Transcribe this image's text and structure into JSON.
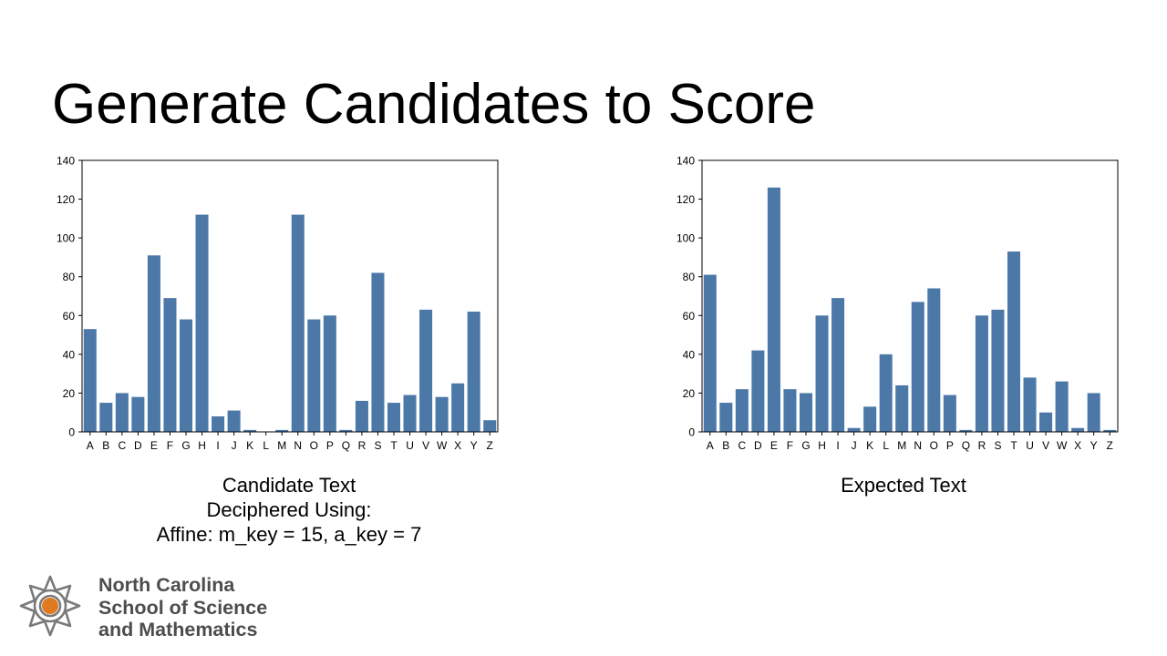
{
  "slide": {
    "title": "Generate Candidates to Score"
  },
  "captions": {
    "left": [
      "Candidate Text",
      "Deciphered Using:",
      "Affine: m_key = 15, a_key = 7"
    ],
    "right": [
      "Expected Text"
    ]
  },
  "logo": {
    "lines": [
      "North Carolina",
      "School of Science",
      "and Mathematics"
    ],
    "mark_color": "#7a7a7a",
    "dot_color": "#e07a1f"
  },
  "colors": {
    "bar": "#4c78a8",
    "axis": "#000000"
  },
  "chart_data": [
    {
      "type": "bar",
      "categories": [
        "A",
        "B",
        "C",
        "D",
        "E",
        "F",
        "G",
        "H",
        "I",
        "J",
        "K",
        "L",
        "M",
        "N",
        "O",
        "P",
        "Q",
        "R",
        "S",
        "T",
        "U",
        "V",
        "W",
        "X",
        "Y",
        "Z"
      ],
      "values": [
        53,
        15,
        20,
        18,
        91,
        69,
        58,
        112,
        8,
        11,
        1,
        0,
        1,
        112,
        58,
        60,
        1,
        16,
        82,
        15,
        19,
        63,
        18,
        25,
        62,
        6
      ],
      "ylim": [
        0,
        140
      ],
      "yticks": [
        0,
        20,
        40,
        60,
        80,
        100,
        120,
        140
      ],
      "xlabel": "",
      "ylabel": "",
      "title": ""
    },
    {
      "type": "bar",
      "categories": [
        "A",
        "B",
        "C",
        "D",
        "E",
        "F",
        "G",
        "H",
        "I",
        "J",
        "K",
        "L",
        "M",
        "N",
        "O",
        "P",
        "Q",
        "R",
        "S",
        "T",
        "U",
        "V",
        "W",
        "X",
        "Y",
        "Z"
      ],
      "values": [
        81,
        15,
        22,
        42,
        126,
        22,
        20,
        60,
        69,
        2,
        13,
        40,
        24,
        67,
        74,
        19,
        1,
        60,
        63,
        93,
        28,
        10,
        26,
        2,
        20,
        1
      ],
      "ylim": [
        0,
        140
      ],
      "yticks": [
        0,
        20,
        40,
        60,
        80,
        100,
        120,
        140
      ],
      "xlabel": "",
      "ylabel": "",
      "title": ""
    }
  ]
}
